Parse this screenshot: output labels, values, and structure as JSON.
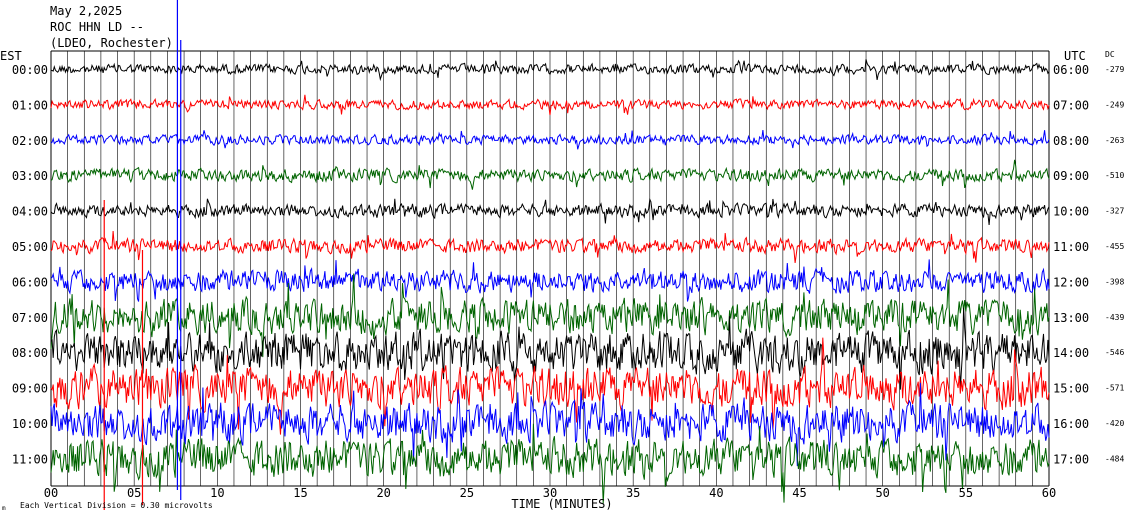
{
  "header": {
    "date": "May 2,2025",
    "station": "ROC HHN LD --",
    "network": "(LDEO, Rochester)"
  },
  "chart_data": {
    "type": "line",
    "title": "",
    "left_axis_label": "EST",
    "right_axis_label": "UTC",
    "dc_header": "DC",
    "xlabel": "TIME (MINUTES)",
    "x_ticks": [
      "00",
      "05",
      "10",
      "15",
      "20",
      "25",
      "30",
      "35",
      "40",
      "45",
      "50",
      "55",
      "60"
    ],
    "xlim": [
      0,
      60
    ],
    "rows": [
      {
        "est": "00:00",
        "utc": "06:00",
        "dc": "-279",
        "color": "#000000",
        "amp": 6
      },
      {
        "est": "01:00",
        "utc": "07:00",
        "dc": "-249",
        "color": "#ff0000",
        "amp": 6
      },
      {
        "est": "02:00",
        "utc": "08:00",
        "dc": "-263",
        "color": "#0000ff",
        "amp": 6
      },
      {
        "est": "03:00",
        "utc": "09:00",
        "dc": "-510",
        "color": "#006400",
        "amp": 8
      },
      {
        "est": "04:00",
        "utc": "10:00",
        "dc": "-327",
        "color": "#000000",
        "amp": 8
      },
      {
        "est": "05:00",
        "utc": "11:00",
        "dc": "-455",
        "color": "#ff0000",
        "amp": 9
      },
      {
        "est": "06:00",
        "utc": "12:00",
        "dc": "-398",
        "color": "#0000ff",
        "amp": 14
      },
      {
        "est": "07:00",
        "utc": "13:00",
        "dc": "-439",
        "color": "#006400",
        "amp": 22
      },
      {
        "est": "08:00",
        "utc": "14:00",
        "dc": "-546",
        "color": "#000000",
        "amp": 26
      },
      {
        "est": "09:00",
        "utc": "15:00",
        "dc": "-571",
        "color": "#ff0000",
        "amp": 26
      },
      {
        "est": "10:00",
        "utc": "16:00",
        "dc": "-420",
        "color": "#0000ff",
        "amp": 24
      },
      {
        "est": "11:00",
        "utc": "17:00",
        "dc": "-484",
        "color": "#006400",
        "amp": 24
      }
    ],
    "footnote": "Each Vertical Division = 0.30 microvolts",
    "footnote_mark": "m"
  }
}
